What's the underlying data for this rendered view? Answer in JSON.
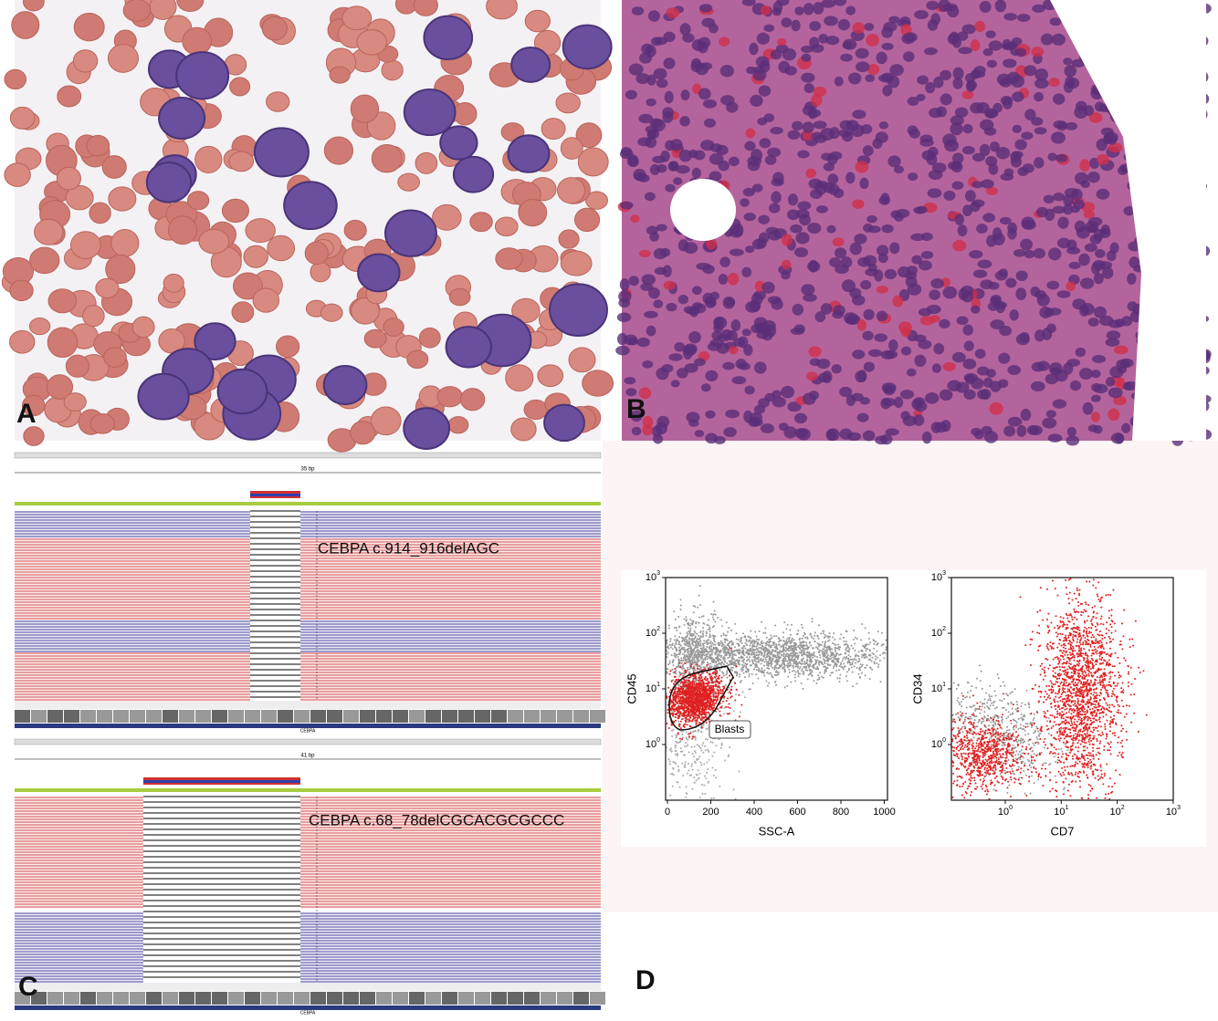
{
  "panels": {
    "A": {
      "label": "A"
    },
    "B": {
      "label": "B"
    },
    "C": {
      "label": "C",
      "tracks": [
        {
          "size": "35 bp",
          "gene": "CEBPA",
          "annotation": "CEBPA c.914_916delAGC"
        },
        {
          "size": "41 bp",
          "gene": "CEBPA",
          "annotation": "CEBPA c.68_78delCGCACGCGCCC"
        }
      ]
    },
    "D": {
      "label": "D",
      "plots": [
        {
          "x_label": "SSC-A",
          "y_label": "CD45",
          "gate_label": "Blasts",
          "x_ticks": [
            "0",
            "200",
            "400",
            "600",
            "800",
            "1000"
          ],
          "y_ticks": [
            {
              "base": "10",
              "exp": "0"
            },
            {
              "base": "10",
              "exp": "1"
            },
            {
              "base": "10",
              "exp": "2"
            },
            {
              "base": "10",
              "exp": "3"
            }
          ]
        },
        {
          "x_label": "CD7",
          "y_label": "CD34",
          "x_ticks": [
            {
              "base": "10",
              "exp": "0"
            },
            {
              "base": "10",
              "exp": "1"
            },
            {
              "base": "10",
              "exp": "2"
            },
            {
              "base": "10",
              "exp": "3"
            }
          ],
          "y_ticks": [
            {
              "base": "10",
              "exp": "0"
            },
            {
              "base": "10",
              "exp": "1"
            },
            {
              "base": "10",
              "exp": "2"
            },
            {
              "base": "10",
              "exp": "3"
            }
          ]
        }
      ]
    }
  }
}
